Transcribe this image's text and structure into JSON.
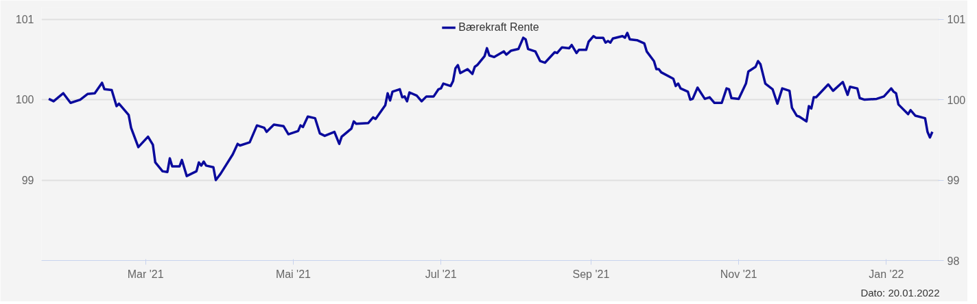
{
  "chart_data": {
    "type": "line",
    "series": [
      {
        "name": "Bærekraft Rente",
        "color": "#0a0a9c",
        "x": [
          "2021-01-20",
          "2021-01-22",
          "2021-01-26",
          "2021-01-29",
          "2021-02-02",
          "2021-02-05",
          "2021-02-08",
          "2021-02-11",
          "2021-02-12",
          "2021-02-15",
          "2021-02-17",
          "2021-02-18",
          "2021-02-22",
          "2021-02-23",
          "2021-02-26",
          "2021-03-02",
          "2021-03-04",
          "2021-03-05",
          "2021-03-08",
          "2021-03-10",
          "2021-03-11",
          "2021-03-12",
          "2021-03-15",
          "2021-03-16",
          "2021-03-18",
          "2021-03-22",
          "2021-03-23",
          "2021-03-24",
          "2021-03-25",
          "2021-03-26",
          "2021-03-29",
          "2021-03-30",
          "2021-04-01",
          "2021-04-06",
          "2021-04-08",
          "2021-04-09",
          "2021-04-13",
          "2021-04-16",
          "2021-04-19",
          "2021-04-20",
          "2021-04-23",
          "2021-04-27",
          "2021-04-29",
          "2021-05-03",
          "2021-05-04",
          "2021-05-05",
          "2021-05-07",
          "2021-05-10",
          "2021-05-12",
          "2021-05-14",
          "2021-05-18",
          "2021-05-20",
          "2021-05-21",
          "2021-05-25",
          "2021-05-26",
          "2021-05-27",
          "2021-06-01",
          "2021-06-03",
          "2021-06-04",
          "2021-06-08",
          "2021-06-09",
          "2021-06-10",
          "2021-06-11",
          "2021-06-14",
          "2021-06-15",
          "2021-06-16",
          "2021-06-17",
          "2021-06-18",
          "2021-06-21",
          "2021-06-23",
          "2021-06-25",
          "2021-06-28",
          "2021-06-30",
          "2021-07-01",
          "2021-07-02",
          "2021-07-05",
          "2021-07-06",
          "2021-07-07",
          "2021-07-08",
          "2021-07-09",
          "2021-07-12",
          "2021-07-14",
          "2021-07-15",
          "2021-07-16",
          "2021-07-19",
          "2021-07-20",
          "2021-07-21",
          "2021-07-23",
          "2021-07-27",
          "2021-07-28",
          "2021-07-30",
          "2021-08-02",
          "2021-08-04",
          "2021-08-05",
          "2021-08-06",
          "2021-08-09",
          "2021-08-11",
          "2021-08-13",
          "2021-08-17",
          "2021-08-18",
          "2021-08-20",
          "2021-08-23",
          "2021-08-24",
          "2021-08-26",
          "2021-08-27",
          "2021-08-30",
          "2021-08-31",
          "2021-09-02",
          "2021-09-03",
          "2021-09-06",
          "2021-09-07",
          "2021-09-08",
          "2021-09-09",
          "2021-09-10",
          "2021-09-14",
          "2021-09-15",
          "2021-09-16",
          "2021-09-17",
          "2021-09-20",
          "2021-09-23",
          "2021-09-24",
          "2021-09-27",
          "2021-09-28",
          "2021-09-29",
          "2021-09-30",
          "2021-10-05",
          "2021-10-06",
          "2021-10-07",
          "2021-10-08",
          "2021-10-11",
          "2021-10-12",
          "2021-10-13",
          "2021-10-15",
          "2021-10-18",
          "2021-10-20",
          "2021-10-22",
          "2021-10-25",
          "2021-10-27",
          "2021-10-28",
          "2021-10-29",
          "2021-11-01",
          "2021-11-04",
          "2021-11-05",
          "2021-11-08",
          "2021-11-09",
          "2021-11-10",
          "2021-11-12",
          "2021-11-15",
          "2021-11-17",
          "2021-11-19",
          "2021-11-22",
          "2021-11-23",
          "2021-11-25",
          "2021-11-26",
          "2021-11-29",
          "2021-11-30",
          "2021-12-01",
          "2021-12-02",
          "2021-12-03",
          "2021-12-08",
          "2021-12-10",
          "2021-12-14",
          "2021-12-16",
          "2021-12-17",
          "2021-12-20",
          "2021-12-21",
          "2021-12-23",
          "2021-12-28",
          "2021-12-31",
          "2022-01-03",
          "2022-01-04",
          "2022-01-05",
          "2022-01-06",
          "2022-01-10",
          "2022-01-11",
          "2022-01-13",
          "2022-01-17",
          "2022-01-18",
          "2022-01-19",
          "2022-01-20"
        ],
        "values": [
          100.01,
          99.98,
          100.08,
          99.96,
          100.0,
          100.07,
          100.08,
          100.21,
          100.13,
          100.12,
          99.92,
          99.95,
          99.81,
          99.65,
          99.41,
          99.54,
          99.44,
          99.22,
          99.11,
          99.1,
          99.27,
          99.17,
          99.17,
          99.25,
          99.05,
          99.11,
          99.22,
          99.18,
          99.23,
          99.18,
          99.16,
          99.0,
          99.08,
          99.32,
          99.45,
          99.43,
          99.47,
          99.68,
          99.65,
          99.6,
          99.69,
          99.67,
          99.57,
          99.61,
          99.68,
          99.66,
          99.79,
          99.77,
          99.58,
          99.55,
          99.6,
          99.45,
          99.54,
          99.64,
          99.73,
          99.7,
          99.71,
          99.78,
          99.76,
          99.93,
          100.08,
          99.99,
          100.1,
          100.13,
          100.03,
          100.04,
          99.98,
          100.09,
          100.05,
          99.98,
          100.04,
          100.04,
          100.13,
          100.14,
          100.2,
          100.17,
          100.23,
          100.39,
          100.43,
          100.33,
          100.38,
          100.32,
          100.41,
          100.43,
          100.54,
          100.64,
          100.55,
          100.53,
          100.6,
          100.56,
          100.61,
          100.63,
          100.77,
          100.75,
          100.63,
          100.6,
          100.48,
          100.46,
          100.59,
          100.58,
          100.65,
          100.64,
          100.68,
          100.58,
          100.62,
          100.62,
          100.72,
          100.79,
          100.77,
          100.77,
          100.71,
          100.73,
          100.71,
          100.76,
          100.79,
          100.77,
          100.83,
          100.75,
          100.74,
          100.7,
          100.6,
          100.48,
          100.38,
          100.38,
          100.34,
          100.26,
          100.17,
          100.2,
          100.14,
          100.1,
          100.0,
          100.01,
          100.15,
          100.01,
          100.03,
          99.96,
          99.96,
          100.14,
          100.13,
          100.02,
          100.01,
          100.2,
          100.35,
          100.41,
          100.48,
          100.44,
          100.2,
          100.13,
          99.95,
          100.14,
          100.11,
          99.9,
          99.8,
          99.79,
          99.73,
          99.92,
          99.89,
          100.03,
          100.03,
          100.19,
          100.11,
          100.22,
          100.06,
          100.16,
          100.14,
          100.02,
          100.0,
          100.01,
          100.04,
          100.14,
          100.1,
          100.08,
          99.94,
          99.82,
          99.87,
          99.8,
          99.77,
          99.6,
          99.53,
          99.6
        ]
      }
    ],
    "xlim": [
      "2021-01-17",
      "2022-01-23"
    ],
    "xticks": [
      {
        "value": "2021-03-01",
        "label": "Mar '21"
      },
      {
        "value": "2021-05-01",
        "label": "Mai '21"
      },
      {
        "value": "2021-07-01",
        "label": "Jul '21"
      },
      {
        "value": "2021-09-01",
        "label": "Sep '21"
      },
      {
        "value": "2021-11-01",
        "label": "Nov '21"
      },
      {
        "value": "2022-01-01",
        "label": "Jan '22"
      }
    ],
    "ylim": [
      98,
      101.15
    ],
    "yticks": [
      {
        "value": 98,
        "label": null
      },
      99,
      100,
      101
    ],
    "y2lim": [
      98,
      101.15
    ],
    "y2ticks": [
      98,
      99,
      100,
      101
    ],
    "grid": "y",
    "legend": "top",
    "marker": "none",
    "line_style": "solid",
    "annotations": [
      "Dato: 20.01.2022"
    ]
  }
}
